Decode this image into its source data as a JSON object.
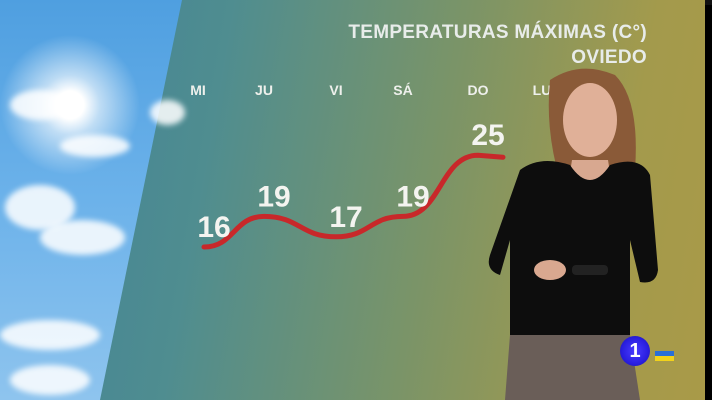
{
  "header": {
    "title": "TEMPERATURAS MÁXIMAS (C°)",
    "location": "OVIEDO"
  },
  "chart_data": {
    "type": "line",
    "title": "TEMPERATURAS MÁXIMAS (C°)",
    "subtitle": "OVIEDO",
    "categories": [
      "MI",
      "JU",
      "VI",
      "SÁ",
      "DO",
      "LU"
    ],
    "values": [
      16,
      19,
      17,
      19,
      25,
      null
    ],
    "line_color": "#c8282a"
  },
  "channel": {
    "logo": "1",
    "flag_colors": [
      "#2a6fd6",
      "#f2d21a"
    ]
  },
  "colors": {
    "background_left": "#3e7f98",
    "background_right": "#a99a48"
  }
}
